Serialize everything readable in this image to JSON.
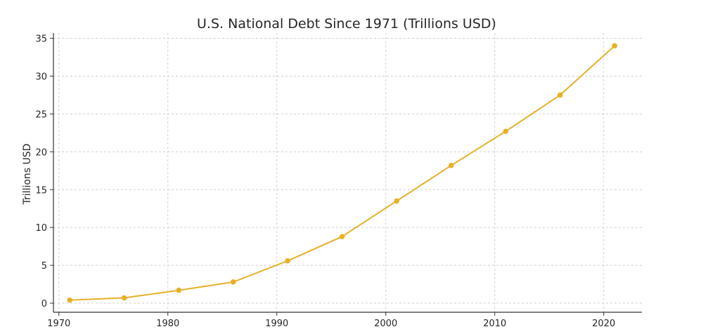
{
  "chart_data": {
    "type": "line",
    "title": "U.S. National Debt Since 1971 (Trillions USD)",
    "xlabel": "",
    "ylabel": "Trillions USD",
    "xlim": [
      1969.5,
      2023.5
    ],
    "ylim": [
      -1.2,
      35.7
    ],
    "xticks": [
      1970,
      1980,
      1990,
      2000,
      2010,
      2020
    ],
    "yticks": [
      0,
      5,
      10,
      15,
      20,
      25,
      30,
      35
    ],
    "grid": true,
    "color": "#E8B028",
    "x": [
      1971,
      1976,
      1981,
      1986,
      1991,
      1996,
      2001,
      2006,
      2011,
      2016,
      2021
    ],
    "y": [
      0.4,
      0.7,
      1.7,
      2.8,
      5.6,
      8.8,
      13.5,
      18.2,
      22.7,
      27.5,
      34.0
    ]
  }
}
